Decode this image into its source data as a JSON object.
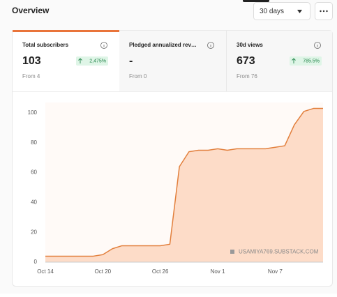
{
  "header": {
    "title": "Overview",
    "range": "30 days"
  },
  "stats": [
    {
      "label": "Total subscribers",
      "value": "103",
      "change": "2,475%",
      "from": "From 4"
    },
    {
      "label": "Pledged annualized rev…",
      "value": "-",
      "from": "From 0"
    },
    {
      "label": "30d views",
      "value": "673",
      "change": "785.5%",
      "from": "From 76"
    }
  ],
  "chart": {
    "type": "line",
    "categories": [
      "Oct 14",
      null,
      null,
      null,
      null,
      null,
      "Oct 20",
      null,
      null,
      null,
      null,
      null,
      "Oct 26",
      null,
      null,
      null,
      null,
      null,
      "Nov 1",
      null,
      null,
      null,
      null,
      null,
      "Nov 7",
      null,
      null,
      null,
      null,
      null
    ],
    "values": [
      4,
      4,
      4,
      4,
      4,
      4,
      5,
      9,
      11,
      11,
      11,
      11,
      11,
      12,
      64,
      74,
      75,
      75,
      76,
      75,
      76,
      76,
      76,
      76,
      77,
      78,
      92,
      101,
      103,
      103
    ],
    "color": "#e27f3c",
    "fill": "#fddcc8",
    "ylim": [
      0,
      107
    ],
    "yticks": [
      0,
      20,
      40,
      60,
      80,
      100
    ],
    "watermark": "USAMIYA769.SUBSTACK.COM"
  }
}
